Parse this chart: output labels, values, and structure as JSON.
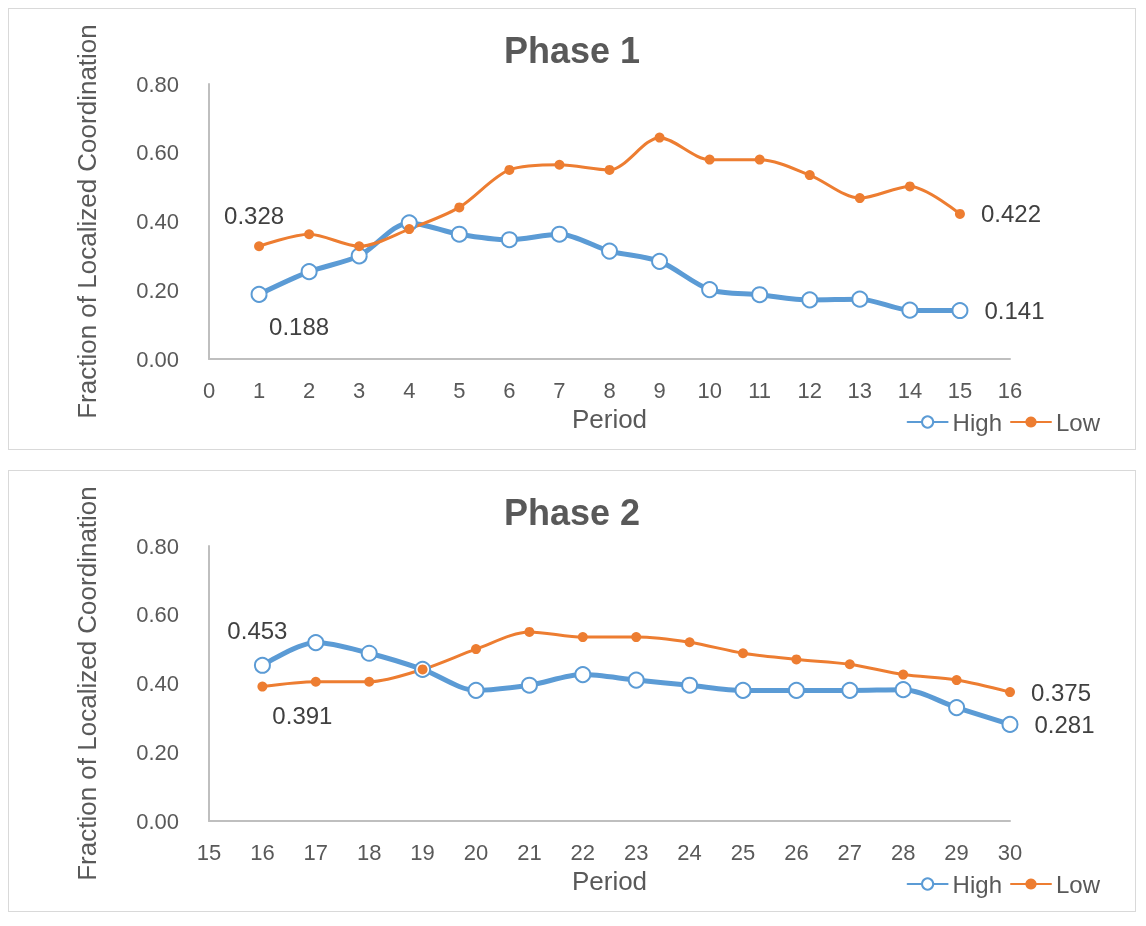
{
  "chart_data": [
    {
      "type": "line",
      "title": "Phase 1",
      "xlabel": "Period",
      "ylabel": "Fraction of Localized Coordination",
      "x": [
        1,
        2,
        3,
        4,
        5,
        6,
        7,
        8,
        9,
        10,
        11,
        12,
        13,
        14,
        15
      ],
      "series": [
        {
          "name": "High",
          "color": "#5b9bd5",
          "marker": "circle",
          "values": [
            0.188,
            0.254,
            0.3,
            0.396,
            0.363,
            0.347,
            0.363,
            0.314,
            0.284,
            0.202,
            0.187,
            0.172,
            0.174,
            0.142,
            0.141
          ],
          "value_labels": [
            "0.188",
            null,
            null,
            null,
            null,
            null,
            null,
            null,
            null,
            null,
            null,
            null,
            null,
            null,
            "0.141"
          ]
        },
        {
          "name": "Low",
          "color": "#ed7d31",
          "marker": "circle",
          "values": [
            0.328,
            0.363,
            0.328,
            0.378,
            0.441,
            0.55,
            0.565,
            0.55,
            0.644,
            0.58,
            0.58,
            0.535,
            0.468,
            0.502,
            0.422
          ],
          "value_labels": [
            "0.328",
            null,
            null,
            null,
            null,
            null,
            null,
            null,
            null,
            null,
            null,
            null,
            null,
            null,
            "0.422"
          ]
        }
      ],
      "xlim": [
        0,
        16
      ],
      "xticks": [
        0,
        1,
        2,
        3,
        4,
        5,
        6,
        7,
        8,
        9,
        10,
        11,
        12,
        13,
        14,
        15,
        16
      ],
      "ylim": [
        0,
        0.8
      ],
      "yticks": [
        {
          "value": 0,
          "label": "0.00"
        },
        {
          "value": 0.2,
          "label": "0.20"
        },
        {
          "value": 0.4,
          "label": "0.40"
        },
        {
          "value": 0.6,
          "label": "0.60"
        },
        {
          "value": 0.8,
          "label": "0.80"
        }
      ],
      "legend": "bottom right"
    },
    {
      "type": "line",
      "title": "Phase 2",
      "xlabel": "Period",
      "ylabel": "Fraction of Localized Coordination",
      "x": [
        16,
        17,
        18,
        19,
        20,
        21,
        22,
        23,
        24,
        25,
        26,
        27,
        28,
        29,
        30
      ],
      "series": [
        {
          "name": "High",
          "color": "#5b9bd5",
          "marker": "circle",
          "values": [
            0.453,
            0.519,
            0.488,
            0.441,
            0.38,
            0.395,
            0.426,
            0.41,
            0.395,
            0.38,
            0.38,
            0.38,
            0.382,
            0.33,
            0.281
          ],
          "value_labels": [
            "0.453",
            null,
            null,
            null,
            null,
            null,
            null,
            null,
            null,
            null,
            null,
            null,
            null,
            null,
            "0.281"
          ]
        },
        {
          "name": "Low",
          "color": "#ed7d31",
          "marker": "circle",
          "values": [
            0.391,
            0.405,
            0.405,
            0.441,
            0.5,
            0.55,
            0.535,
            0.535,
            0.52,
            0.488,
            0.47,
            0.456,
            0.426,
            0.41,
            0.375
          ],
          "value_labels": [
            "0.391",
            null,
            null,
            null,
            null,
            null,
            null,
            null,
            null,
            null,
            null,
            null,
            null,
            null,
            "0.375"
          ]
        }
      ],
      "xlim": [
        15,
        30
      ],
      "xticks": [
        15,
        16,
        17,
        18,
        19,
        20,
        21,
        22,
        23,
        24,
        25,
        26,
        27,
        28,
        29,
        30
      ],
      "ylim": [
        0,
        0.8
      ],
      "yticks": [
        {
          "value": 0,
          "label": "0.00"
        },
        {
          "value": 0.2,
          "label": "0.20"
        },
        {
          "value": 0.4,
          "label": "0.40"
        },
        {
          "value": 0.6,
          "label": "0.60"
        },
        {
          "value": 0.8,
          "label": "0.80"
        }
      ],
      "legend": "bottom right"
    }
  ]
}
